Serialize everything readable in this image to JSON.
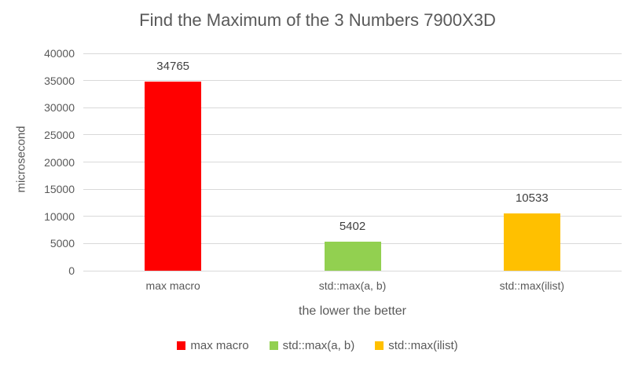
{
  "chart_data": {
    "type": "bar",
    "title": "Find the Maximum of the 3 Numbers 7900X3D",
    "categories": [
      "max macro",
      "std::max(a, b)",
      "std::max(ilist)"
    ],
    "values": [
      34765,
      5402,
      10533
    ],
    "data_labels": [
      "34765",
      "5402",
      "10533"
    ],
    "bar_colors": [
      "#FF0000",
      "#92D050",
      "#FFC000"
    ],
    "xlabel": "the lower the better",
    "ylabel": "microsecond",
    "ylim": [
      0,
      40000
    ],
    "ytick_interval": 5000,
    "grid": true,
    "legend": {
      "position": "bottom",
      "entries": [
        {
          "label": "max macro",
          "color": "#FF0000"
        },
        {
          "label": "std::max(a, b)",
          "color": "#92D050"
        },
        {
          "label": "std::max(ilist)",
          "color": "#FFC000"
        }
      ]
    },
    "colors": {
      "background": "#FFFFFF",
      "gridline": "#D9D9D9",
      "axis_line": "#D9D9D9",
      "axis_text": "#595959",
      "title_text": "#595959",
      "data_label_text": "#404040"
    }
  }
}
